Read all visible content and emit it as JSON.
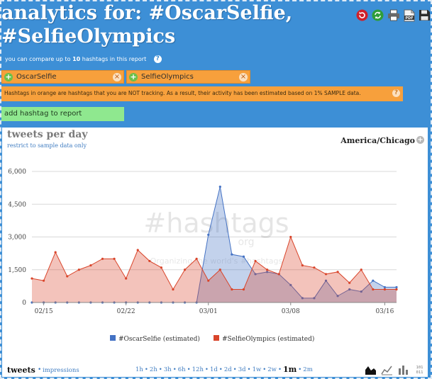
{
  "header": {
    "title_line1": "analytics for: #OscarSelfie,",
    "title_line2": "#SelfieOlympics",
    "toolbar_icons": [
      "refresh-icon",
      "refresh-green-icon",
      "print-icon",
      "pdf-icon",
      "save-icon"
    ]
  },
  "compare_note": {
    "prefix": "you can compare up to",
    "count": "10",
    "suffix": "hashtags in this report"
  },
  "hashtags": [
    {
      "label": "OscarSelfie"
    },
    {
      "label": "SelfieOlympics"
    }
  ],
  "warning": "Hashtags in orange are hashtags that you are NOT tracking. As a result, their activity has been estimated based on 1% SAMPLE data.",
  "add_hashtag_label": "add hashtag to report",
  "chart_panel": {
    "title": "tweets per day",
    "restrict_link": "restrict to sample data only",
    "timezone": "America/Chicago",
    "watermark_main": "#hashtags",
    "watermark_sub": "org",
    "watermark_tag": "Organizing the world's #hashtags"
  },
  "colors": {
    "header_blue": "#3d8fd6",
    "pill_orange": "#f7a03c",
    "add_green": "#8fe88f",
    "series_oscar": "#4472c4",
    "series_selfie": "#d9452b",
    "link_blue": "#3f7cc1"
  },
  "chart_data": {
    "type": "area",
    "title": "tweets per day",
    "xlabel": "",
    "ylabel": "",
    "ylim": [
      0,
      6000
    ],
    "y_ticks": [
      0,
      1500,
      3000,
      4500,
      6000
    ],
    "y_tick_labels": [
      "0",
      "1,500",
      "3,000",
      "4,500",
      "6,000"
    ],
    "x_dates": [
      "02/14",
      "02/15",
      "02/16",
      "02/17",
      "02/18",
      "02/19",
      "02/20",
      "02/21",
      "02/22",
      "02/23",
      "02/24",
      "02/25",
      "02/26",
      "02/27",
      "02/28",
      "03/01",
      "03/02",
      "03/03",
      "03/04",
      "03/05",
      "03/06",
      "03/07",
      "03/08",
      "03/09",
      "03/10",
      "03/11",
      "03/12",
      "03/13",
      "03/14",
      "03/15",
      "03/16",
      "03/17"
    ],
    "x_tick_labels": [
      "02/15",
      "02/22",
      "03/01",
      "03/08",
      "03/16"
    ],
    "series": [
      {
        "name": "#OscarSelfie (estimated)",
        "color": "#4472c4",
        "values": [
          0,
          0,
          0,
          0,
          0,
          0,
          0,
          0,
          0,
          0,
          0,
          0,
          0,
          0,
          0,
          3100,
          5300,
          2200,
          2100,
          1300,
          1400,
          1300,
          800,
          200,
          200,
          1000,
          300,
          600,
          500,
          1000,
          700,
          700
        ]
      },
      {
        "name": "#SelfieOlympics (estimated)",
        "color": "#d9452b",
        "values": [
          1100,
          1000,
          2300,
          1200,
          1500,
          1700,
          2000,
          2000,
          1100,
          2400,
          1900,
          1600,
          600,
          1500,
          2000,
          1000,
          1500,
          600,
          600,
          1900,
          1500,
          1300,
          3000,
          1700,
          1600,
          1300,
          1400,
          900,
          1500,
          600,
          600,
          600
        ]
      }
    ],
    "legend_position": "bottom-center",
    "grid": true
  },
  "footer": {
    "tweets_label": "tweets",
    "separator": "•",
    "impressions_label": "impressions",
    "ranges": [
      "1h",
      "2h",
      "3h",
      "6h",
      "12h",
      "1d",
      "2d",
      "3d",
      "1w",
      "2w",
      "1m",
      "2m"
    ],
    "active_range": "1m",
    "view_icons": [
      "area-chart-icon",
      "line-chart-icon",
      "bar-chart-icon",
      "binary-data-icon"
    ]
  }
}
